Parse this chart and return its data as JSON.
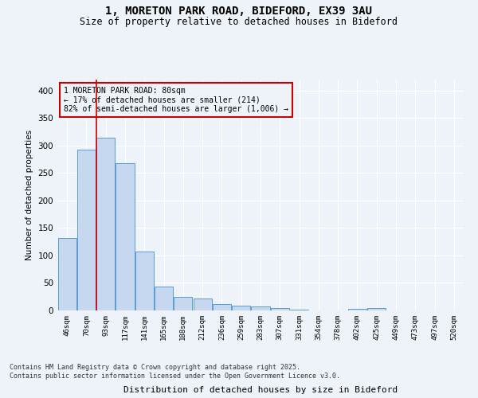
{
  "title_line1": "1, MORETON PARK ROAD, BIDEFORD, EX39 3AU",
  "title_line2": "Size of property relative to detached houses in Bideford",
  "xlabel": "Distribution of detached houses by size in Bideford",
  "ylabel": "Number of detached properties",
  "categories": [
    "46sqm",
    "70sqm",
    "93sqm",
    "117sqm",
    "141sqm",
    "165sqm",
    "188sqm",
    "212sqm",
    "236sqm",
    "259sqm",
    "283sqm",
    "307sqm",
    "331sqm",
    "354sqm",
    "378sqm",
    "402sqm",
    "425sqm",
    "449sqm",
    "473sqm",
    "497sqm",
    "520sqm"
  ],
  "values": [
    132,
    293,
    315,
    268,
    107,
    43,
    25,
    22,
    11,
    8,
    7,
    4,
    1,
    0,
    0,
    3,
    4,
    0,
    0,
    0,
    0
  ],
  "bar_color": "#c5d8f0",
  "bar_edge_color": "#5b9bd5",
  "ylim": [
    0,
    420
  ],
  "yticks": [
    0,
    50,
    100,
    150,
    200,
    250,
    300,
    350,
    400
  ],
  "annotation_box_text": "1 MORETON PARK ROAD: 80sqm\n← 17% of detached houses are smaller (214)\n82% of semi-detached houses are larger (1,006) →",
  "annotation_box_color": "#cc0000",
  "background_color": "#eef2f9",
  "grid_color": "#ffffff",
  "footer_text": "Contains HM Land Registry data © Crown copyright and database right 2025.\nContains public sector information licensed under the Open Government Licence v3.0."
}
